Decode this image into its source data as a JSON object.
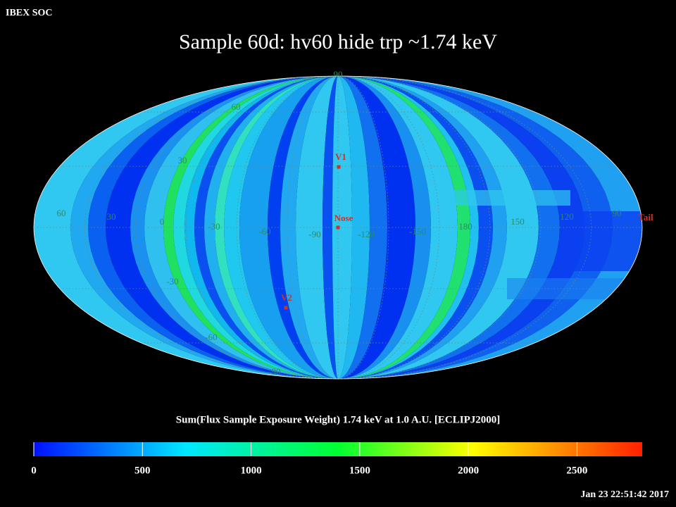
{
  "header": {
    "label": "IBEX SOC",
    "title": "Sample 60d: hv60 hide trp ~1.74 keV",
    "timestamp": "Jan 23 22:51:42 2017"
  },
  "map": {
    "latitude_labels": [
      "90",
      "60",
      "30",
      "-30",
      "-60",
      "-90"
    ],
    "longitude_labels": [
      "60",
      "30",
      "0",
      "-30",
      "-60",
      "-90",
      "-120",
      "-150",
      "180",
      "150",
      "120",
      "90"
    ],
    "markers": [
      "V1",
      "Nose",
      "V2",
      "Tail"
    ]
  },
  "colorbar": {
    "title": "Sum(Flux Sample Exposure Weight)  1.74 keV at 1.0 A.U. [ECLIPJ2000]",
    "range": [
      0,
      2800
    ],
    "ticks": [
      0,
      500,
      1000,
      1500,
      2000,
      2500
    ]
  }
}
